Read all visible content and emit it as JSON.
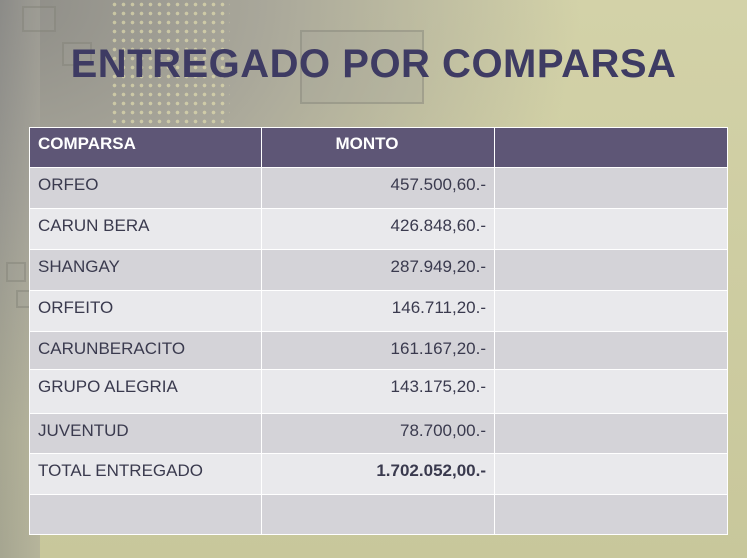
{
  "slide": {
    "title": "ENTREGADO POR COMPARSA"
  },
  "table": {
    "headers": [
      "COMPARSA",
      "MONTO",
      ""
    ],
    "rows": [
      {
        "comparsa": "ORFEO",
        "monto": "457.500,60.-"
      },
      {
        "comparsa": "CARUN BERA",
        "monto": "426.848,60.-"
      },
      {
        "comparsa": "SHANGAY",
        "monto": "287.949,20.-"
      },
      {
        "comparsa": "ORFEITO",
        "monto": "146.711,20.-"
      },
      {
        "comparsa": "CARUNBERACITO",
        "monto": "161.167,20.-"
      },
      {
        "comparsa": "GRUPO ALEGRIA",
        "monto": "143.175,20.-"
      },
      {
        "comparsa": "JUVENTUD",
        "monto": "78.700,00.-"
      }
    ],
    "total": {
      "label": "TOTAL ENTREGADO",
      "monto": "1.702.052,00.-"
    }
  },
  "colors": {
    "title": "#3e3b63",
    "header_bg": "#5e5676",
    "row_dark": "#d4d3d8",
    "row_light": "#e9e9ec",
    "background": "#c9c8a0"
  }
}
